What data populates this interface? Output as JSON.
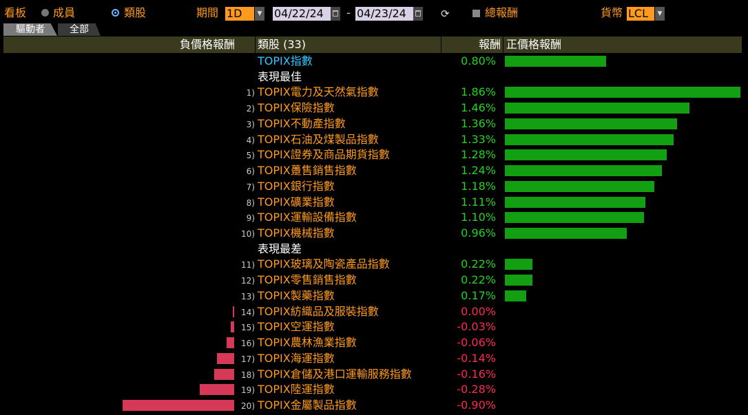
{
  "toolbar": {
    "view_label": "看板",
    "radio_members": "成員",
    "radio_sectors": "類股",
    "period_label": "期間",
    "period_value": "1D",
    "date_from": "04/22/24",
    "date_sep": "-",
    "date_to": "04/23/24",
    "total_return_label": "總報酬",
    "currency_label": "貨幣",
    "currency_value": "LCL"
  },
  "tabs": [
    {
      "label": "驅動者",
      "active": true
    },
    {
      "label": "全部",
      "active": false
    }
  ],
  "header": {
    "neg_label": "負價格報酬",
    "sector_label": "類股 (33)",
    "return_label": "報酬",
    "pos_label": "正價格報酬"
  },
  "benchmark": {
    "name": "TOPIX指數",
    "ret": "0.80%",
    "value": 0.8
  },
  "sections": {
    "best": "表現最佳",
    "worst": "表現最差"
  },
  "best": [
    {
      "rank": "1)",
      "name": "TOPIX電力及天然氣指數",
      "ret": "1.86%",
      "value": 1.86
    },
    {
      "rank": "2)",
      "name": "TOPIX保險指數",
      "ret": "1.46%",
      "value": 1.46
    },
    {
      "rank": "3)",
      "name": "TOPIX不動產指數",
      "ret": "1.36%",
      "value": 1.36
    },
    {
      "rank": "4)",
      "name": "TOPIX石油及煤製品指數",
      "ret": "1.33%",
      "value": 1.33
    },
    {
      "rank": "5)",
      "name": "TOPIX證券及商品期貨指數",
      "ret": "1.28%",
      "value": 1.28
    },
    {
      "rank": "6)",
      "name": "TOPIX躉售銷售指數",
      "ret": "1.24%",
      "value": 1.24
    },
    {
      "rank": "7)",
      "name": "TOPIX銀行指數",
      "ret": "1.18%",
      "value": 1.18
    },
    {
      "rank": "8)",
      "name": "TOPIX礦業指數",
      "ret": "1.11%",
      "value": 1.11
    },
    {
      "rank": "9)",
      "name": "TOPIX運輸設備指數",
      "ret": "1.10%",
      "value": 1.1
    },
    {
      "rank": "10)",
      "name": "TOPIX機械指數",
      "ret": "0.96%",
      "value": 0.96
    }
  ],
  "worst": [
    {
      "rank": "11)",
      "name": "TOPIX玻璃及陶瓷產品指數",
      "ret": "0.22%",
      "value": 0.22
    },
    {
      "rank": "12)",
      "name": "TOPIX零售銷售指數",
      "ret": "0.22%",
      "value": 0.22
    },
    {
      "rank": "13)",
      "name": "TOPIX製藥指數",
      "ret": "0.17%",
      "value": 0.17
    },
    {
      "rank": "14)",
      "name": "TOPIX紡織品及服裝指數",
      "ret": "0.00%",
      "value": -0.005
    },
    {
      "rank": "15)",
      "name": "TOPIX空運指數",
      "ret": "-0.03%",
      "value": -0.03
    },
    {
      "rank": "16)",
      "name": "TOPIX農林漁業指數",
      "ret": "-0.06%",
      "value": -0.06
    },
    {
      "rank": "17)",
      "name": "TOPIX海運指數",
      "ret": "-0.14%",
      "value": -0.14
    },
    {
      "rank": "18)",
      "name": "TOPIX倉儲及港口運輸服務指數",
      "ret": "-0.16%",
      "value": -0.16
    },
    {
      "rank": "19)",
      "name": "TOPIX陸運指數",
      "ret": "-0.28%",
      "value": -0.28
    },
    {
      "rank": "20)",
      "name": "TOPIX金屬製品指數",
      "ret": "-0.90%",
      "value": -0.9
    }
  ],
  "colors": {
    "accent": "#ff9a1f",
    "positive": "#22d322",
    "negative": "#ff2a4f",
    "pos_bar": "#12a012",
    "neg_bar": "#d63858",
    "benchmark": "#34c6ff"
  }
}
